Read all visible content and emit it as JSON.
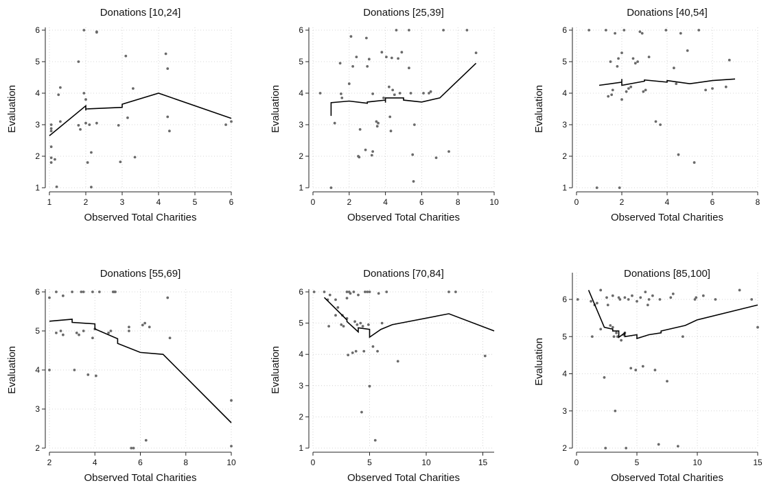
{
  "figure": {
    "layout": "2x3 grid of scatter panels with fitted line"
  },
  "chart_data": [
    {
      "type": "scatter",
      "title": "Donations [10,24]",
      "xlabel": "Observed Total Charities",
      "ylabel": "Evaluation",
      "xlim": [
        1,
        6
      ],
      "ylim": [
        1,
        6
      ],
      "xticks": [
        1,
        2,
        3,
        4,
        5,
        6
      ],
      "yticks": [
        1,
        2,
        3,
        4,
        5,
        6
      ],
      "grid": true,
      "points": [
        [
          1.05,
          3.0
        ],
        [
          1.05,
          2.88
        ],
        [
          1.05,
          2.8
        ],
        [
          1.05,
          2.3
        ],
        [
          1.05,
          1.95
        ],
        [
          1.05,
          1.8
        ],
        [
          1.15,
          1.9
        ],
        [
          1.2,
          1.03
        ],
        [
          1.25,
          3.95
        ],
        [
          1.3,
          4.18
        ],
        [
          1.3,
          3.1
        ],
        [
          1.8,
          2.98
        ],
        [
          1.85,
          2.85
        ],
        [
          1.8,
          5.0
        ],
        [
          1.95,
          4.0
        ],
        [
          1.95,
          6.0
        ],
        [
          2.0,
          3.8
        ],
        [
          2.0,
          3.05
        ],
        [
          2.05,
          1.8
        ],
        [
          2.1,
          3.0
        ],
        [
          2.15,
          2.12
        ],
        [
          2.15,
          1.02
        ],
        [
          2.3,
          5.95
        ],
        [
          2.3,
          5.93
        ],
        [
          2.3,
          3.05
        ],
        [
          2.9,
          2.98
        ],
        [
          2.95,
          1.82
        ],
        [
          3.1,
          5.18
        ],
        [
          3.15,
          3.22
        ],
        [
          3.3,
          4.15
        ],
        [
          3.35,
          1.97
        ],
        [
          4.2,
          5.25
        ],
        [
          4.25,
          4.78
        ],
        [
          4.25,
          3.25
        ],
        [
          4.3,
          2.8
        ],
        [
          5.85,
          3.0
        ],
        [
          6.0,
          3.1
        ]
      ],
      "fit": [
        [
          1,
          2.65
        ],
        [
          2,
          3.6
        ],
        [
          2,
          3.45
        ],
        [
          2,
          3.5
        ],
        [
          3,
          3.55
        ],
        [
          3,
          3.65
        ],
        [
          4,
          4.0
        ],
        [
          6,
          3.2
        ]
      ]
    },
    {
      "type": "scatter",
      "title": "Donations [25,39]",
      "xlabel": "Observed Total Charities",
      "ylabel": "Evaluation",
      "xlim": [
        0,
        10
      ],
      "ylim": [
        1,
        6
      ],
      "xticks": [
        0,
        2,
        4,
        6,
        8,
        10
      ],
      "yticks": [
        1,
        2,
        3,
        4,
        5,
        6
      ],
      "grid": true,
      "points": [
        [
          0.4,
          4.0
        ],
        [
          1.0,
          1.0
        ],
        [
          1.2,
          3.05
        ],
        [
          1.5,
          4.95
        ],
        [
          1.55,
          3.98
        ],
        [
          1.6,
          3.85
        ],
        [
          2.0,
          4.3
        ],
        [
          2.1,
          5.8
        ],
        [
          2.2,
          4.85
        ],
        [
          2.4,
          5.15
        ],
        [
          2.5,
          2.0
        ],
        [
          2.55,
          1.97
        ],
        [
          2.6,
          2.85
        ],
        [
          2.9,
          2.2
        ],
        [
          2.95,
          5.75
        ],
        [
          3.0,
          4.85
        ],
        [
          3.1,
          5.08
        ],
        [
          3.25,
          2.03
        ],
        [
          3.3,
          2.15
        ],
        [
          3.3,
          3.98
        ],
        [
          3.5,
          3.1
        ],
        [
          3.55,
          2.95
        ],
        [
          3.6,
          3.05
        ],
        [
          3.8,
          5.3
        ],
        [
          3.9,
          3.85
        ],
        [
          4.05,
          5.15
        ],
        [
          4.2,
          4.2
        ],
        [
          4.25,
          3.25
        ],
        [
          4.3,
          2.8
        ],
        [
          4.35,
          5.12
        ],
        [
          4.4,
          4.1
        ],
        [
          4.5,
          3.95
        ],
        [
          4.6,
          6.0
        ],
        [
          4.7,
          5.1
        ],
        [
          4.8,
          4.0
        ],
        [
          4.9,
          5.3
        ],
        [
          5.3,
          6.0
        ],
        [
          5.3,
          4.8
        ],
        [
          5.4,
          4.0
        ],
        [
          5.5,
          2.05
        ],
        [
          5.55,
          1.2
        ],
        [
          5.6,
          3.0
        ],
        [
          6.1,
          4.0
        ],
        [
          6.4,
          4.0
        ],
        [
          6.5,
          4.05
        ],
        [
          6.8,
          1.95
        ],
        [
          7.2,
          6.0
        ],
        [
          7.5,
          2.15
        ],
        [
          8.5,
          6.0
        ],
        [
          9.0,
          5.28
        ]
      ],
      "fit": [
        [
          1,
          3.28
        ],
        [
          1,
          3.7
        ],
        [
          2,
          3.75
        ],
        [
          3,
          3.68
        ],
        [
          3,
          3.72
        ],
        [
          4,
          3.78
        ],
        [
          4,
          3.7
        ],
        [
          4,
          3.85
        ],
        [
          5,
          3.85
        ],
        [
          5,
          3.78
        ],
        [
          6,
          3.72
        ],
        [
          7,
          3.85
        ],
        [
          9,
          4.95
        ]
      ]
    },
    {
      "type": "scatter",
      "title": "Donations [40,54]",
      "xlabel": "Observed Total Charities",
      "ylabel": "Evaluation",
      "xlim": [
        0,
        8
      ],
      "ylim": [
        1,
        6
      ],
      "xticks": [
        0,
        2,
        4,
        6,
        8
      ],
      "yticks": [
        1,
        2,
        3,
        4,
        5,
        6
      ],
      "grid": true,
      "points": [
        [
          0.55,
          6.0
        ],
        [
          0.9,
          1.0
        ],
        [
          1.3,
          6.0
        ],
        [
          1.4,
          3.9
        ],
        [
          1.5,
          5.0
        ],
        [
          1.55,
          3.95
        ],
        [
          1.6,
          4.1
        ],
        [
          1.7,
          5.9
        ],
        [
          1.8,
          4.85
        ],
        [
          1.85,
          5.1
        ],
        [
          1.9,
          1.0
        ],
        [
          2.0,
          5.28
        ],
        [
          2.0,
          3.8
        ],
        [
          2.1,
          6.0
        ],
        [
          2.2,
          4.05
        ],
        [
          2.3,
          4.15
        ],
        [
          2.4,
          4.2
        ],
        [
          2.5,
          5.1
        ],
        [
          2.6,
          4.95
        ],
        [
          2.7,
          5.0
        ],
        [
          2.8,
          5.95
        ],
        [
          2.9,
          5.9
        ],
        [
          2.95,
          4.05
        ],
        [
          3.05,
          4.1
        ],
        [
          3.2,
          5.15
        ],
        [
          3.5,
          3.1
        ],
        [
          3.7,
          3.0
        ],
        [
          3.95,
          6.0
        ],
        [
          4.3,
          4.8
        ],
        [
          4.4,
          4.3
        ],
        [
          4.5,
          2.05
        ],
        [
          4.6,
          5.9
        ],
        [
          4.9,
          5.35
        ],
        [
          5.2,
          1.8
        ],
        [
          5.4,
          6.0
        ],
        [
          5.7,
          4.1
        ],
        [
          6.0,
          4.15
        ],
        [
          6.6,
          4.2
        ],
        [
          6.75,
          5.05
        ]
      ],
      "fit": [
        [
          1,
          4.25
        ],
        [
          2,
          4.35
        ],
        [
          2,
          4.45
        ],
        [
          2,
          4.25
        ],
        [
          3,
          4.38
        ],
        [
          3,
          4.42
        ],
        [
          4,
          4.35
        ],
        [
          4,
          4.4
        ],
        [
          5,
          4.3
        ],
        [
          6,
          4.4
        ],
        [
          7,
          4.45
        ]
      ]
    },
    {
      "type": "scatter",
      "title": "Donations [55,69]",
      "xlabel": "Observed Total Charities",
      "ylabel": "Evaluation",
      "xlim": [
        2,
        10
      ],
      "ylim": [
        2,
        6
      ],
      "xticks": [
        2,
        4,
        6,
        8,
        10
      ],
      "yticks": [
        2,
        3,
        4,
        5,
        6
      ],
      "grid": true,
      "points": [
        [
          2.0,
          5.85
        ],
        [
          2.0,
          4.0
        ],
        [
          2.3,
          6.0
        ],
        [
          2.3,
          4.95
        ],
        [
          2.5,
          5.0
        ],
        [
          2.6,
          5.9
        ],
        [
          2.6,
          4.9
        ],
        [
          3.0,
          6.0
        ],
        [
          3.1,
          4.0
        ],
        [
          3.2,
          4.95
        ],
        [
          3.3,
          4.9
        ],
        [
          3.4,
          6.0
        ],
        [
          3.5,
          6.0
        ],
        [
          3.5,
          5.0
        ],
        [
          3.7,
          3.88
        ],
        [
          3.9,
          6.0
        ],
        [
          3.9,
          4.82
        ],
        [
          4.0,
          5.05
        ],
        [
          4.05,
          3.85
        ],
        [
          4.2,
          6.0
        ],
        [
          4.6,
          4.95
        ],
        [
          4.7,
          5.0
        ],
        [
          4.8,
          6.0
        ],
        [
          4.85,
          6.0
        ],
        [
          4.9,
          6.0
        ],
        [
          5.5,
          5.0
        ],
        [
          5.5,
          5.1
        ],
        [
          5.6,
          2.0
        ],
        [
          5.7,
          2.0
        ],
        [
          6.1,
          5.15
        ],
        [
          6.2,
          5.2
        ],
        [
          6.25,
          2.2
        ],
        [
          6.4,
          5.1
        ],
        [
          7.2,
          5.85
        ],
        [
          7.3,
          4.82
        ],
        [
          10.0,
          3.22
        ],
        [
          10.0,
          2.05
        ]
      ],
      "fit": [
        [
          2,
          5.25
        ],
        [
          3,
          5.3
        ],
        [
          3,
          5.22
        ],
        [
          4,
          5.18
        ],
        [
          4,
          5.05
        ],
        [
          5,
          4.8
        ],
        [
          5,
          4.68
        ],
        [
          6,
          4.45
        ],
        [
          7,
          4.4
        ],
        [
          10,
          2.65
        ]
      ]
    },
    {
      "type": "scatter",
      "title": "Donations [70,84]",
      "xlabel": "Observed Total Charities",
      "ylabel": "Evaluation",
      "xlim": [
        0,
        16
      ],
      "ylim": [
        1,
        6
      ],
      "xticks": [
        0,
        5,
        10,
        15
      ],
      "yticks": [
        1,
        2,
        3,
        4,
        5,
        6
      ],
      "grid": true,
      "points": [
        [
          0.1,
          6.0
        ],
        [
          1.0,
          6.0
        ],
        [
          1.3,
          5.75
        ],
        [
          1.4,
          4.9
        ],
        [
          1.5,
          5.9
        ],
        [
          2.0,
          5.75
        ],
        [
          2.0,
          5.25
        ],
        [
          2.2,
          5.5
        ],
        [
          2.5,
          4.95
        ],
        [
          2.6,
          5.25
        ],
        [
          2.7,
          4.9
        ],
        [
          3.0,
          6.0
        ],
        [
          3.0,
          5.8
        ],
        [
          3.0,
          5.15
        ],
        [
          3.1,
          3.98
        ],
        [
          3.2,
          6.0
        ],
        [
          3.3,
          5.95
        ],
        [
          3.5,
          4.05
        ],
        [
          3.6,
          6.0
        ],
        [
          3.7,
          5.05
        ],
        [
          3.8,
          4.1
        ],
        [
          3.9,
          4.95
        ],
        [
          4.0,
          5.9
        ],
        [
          4.2,
          5.0
        ],
        [
          4.3,
          2.15
        ],
        [
          4.4,
          4.9
        ],
        [
          4.5,
          4.1
        ],
        [
          4.6,
          6.0
        ],
        [
          4.8,
          6.0
        ],
        [
          4.9,
          4.95
        ],
        [
          5.0,
          2.98
        ],
        [
          5.0,
          6.0
        ],
        [
          5.3,
          4.25
        ],
        [
          5.5,
          1.25
        ],
        [
          5.7,
          4.1
        ],
        [
          5.8,
          5.95
        ],
        [
          6.1,
          5.0
        ],
        [
          6.5,
          6.0
        ],
        [
          7.5,
          3.78
        ],
        [
          12.0,
          6.0
        ],
        [
          12.6,
          6.0
        ],
        [
          15.2,
          3.95
        ]
      ],
      "fit": [
        [
          1,
          5.82
        ],
        [
          3,
          5.1
        ],
        [
          3,
          5.05
        ],
        [
          4,
          4.72
        ],
        [
          4,
          4.85
        ],
        [
          5,
          4.8
        ],
        [
          5,
          4.55
        ],
        [
          6,
          4.8
        ],
        [
          7,
          4.95
        ],
        [
          12,
          5.3
        ],
        [
          16,
          4.75
        ]
      ]
    },
    {
      "type": "scatter",
      "title": "Donations [85,100]",
      "xlabel": "Observed Total Charities",
      "ylabel": "Evaluation",
      "xlim": [
        0,
        15
      ],
      "ylim": [
        2,
        6.5
      ],
      "xticks": [
        0,
        5,
        10,
        15
      ],
      "yticks": [
        2,
        3,
        4,
        5,
        6
      ],
      "grid": true,
      "points": [
        [
          0.1,
          6.0
        ],
        [
          1.2,
          5.95
        ],
        [
          1.3,
          5.0
        ],
        [
          1.5,
          5.85
        ],
        [
          1.7,
          5.9
        ],
        [
          2.0,
          6.25
        ],
        [
          2.0,
          5.2
        ],
        [
          2.3,
          3.9
        ],
        [
          2.4,
          2.0
        ],
        [
          2.5,
          6.05
        ],
        [
          2.6,
          5.85
        ],
        [
          2.8,
          5.3
        ],
        [
          3.0,
          5.25
        ],
        [
          3.0,
          6.1
        ],
        [
          3.1,
          5.0
        ],
        [
          3.2,
          3.0
        ],
        [
          3.3,
          5.1
        ],
        [
          3.4,
          5.0
        ],
        [
          3.5,
          6.05
        ],
        [
          3.6,
          6.0
        ],
        [
          3.7,
          4.9
        ],
        [
          3.9,
          5.05
        ],
        [
          4.0,
          6.05
        ],
        [
          4.0,
          5.1
        ],
        [
          4.1,
          2.0
        ],
        [
          4.3,
          6.0
        ],
        [
          4.5,
          4.15
        ],
        [
          4.6,
          6.1
        ],
        [
          4.9,
          4.1
        ],
        [
          5.0,
          5.95
        ],
        [
          5.3,
          6.05
        ],
        [
          5.5,
          4.2
        ],
        [
          5.7,
          6.2
        ],
        [
          5.9,
          5.85
        ],
        [
          6.0,
          6.0
        ],
        [
          6.3,
          6.1
        ],
        [
          6.5,
          4.1
        ],
        [
          6.8,
          2.1
        ],
        [
          6.9,
          6.0
        ],
        [
          7.5,
          3.8
        ],
        [
          7.8,
          6.05
        ],
        [
          8.0,
          6.15
        ],
        [
          8.4,
          2.05
        ],
        [
          8.8,
          5.0
        ],
        [
          9.8,
          6.0
        ],
        [
          9.9,
          6.05
        ],
        [
          10.5,
          6.1
        ],
        [
          11.5,
          6.0
        ],
        [
          13.5,
          6.25
        ],
        [
          14.5,
          6.0
        ],
        [
          15.0,
          5.25
        ]
      ],
      "fit": [
        [
          1,
          6.25
        ],
        [
          2.3,
          5.25
        ],
        [
          3,
          5.2
        ],
        [
          3,
          5.15
        ],
        [
          3.5,
          5.15
        ],
        [
          3.5,
          4.98
        ],
        [
          4,
          5.1
        ],
        [
          4,
          5.0
        ],
        [
          5,
          5.05
        ],
        [
          5,
          4.95
        ],
        [
          6,
          5.05
        ],
        [
          7,
          5.1
        ],
        [
          7,
          5.15
        ],
        [
          9,
          5.3
        ],
        [
          10,
          5.45
        ],
        [
          15,
          5.85
        ]
      ]
    }
  ]
}
